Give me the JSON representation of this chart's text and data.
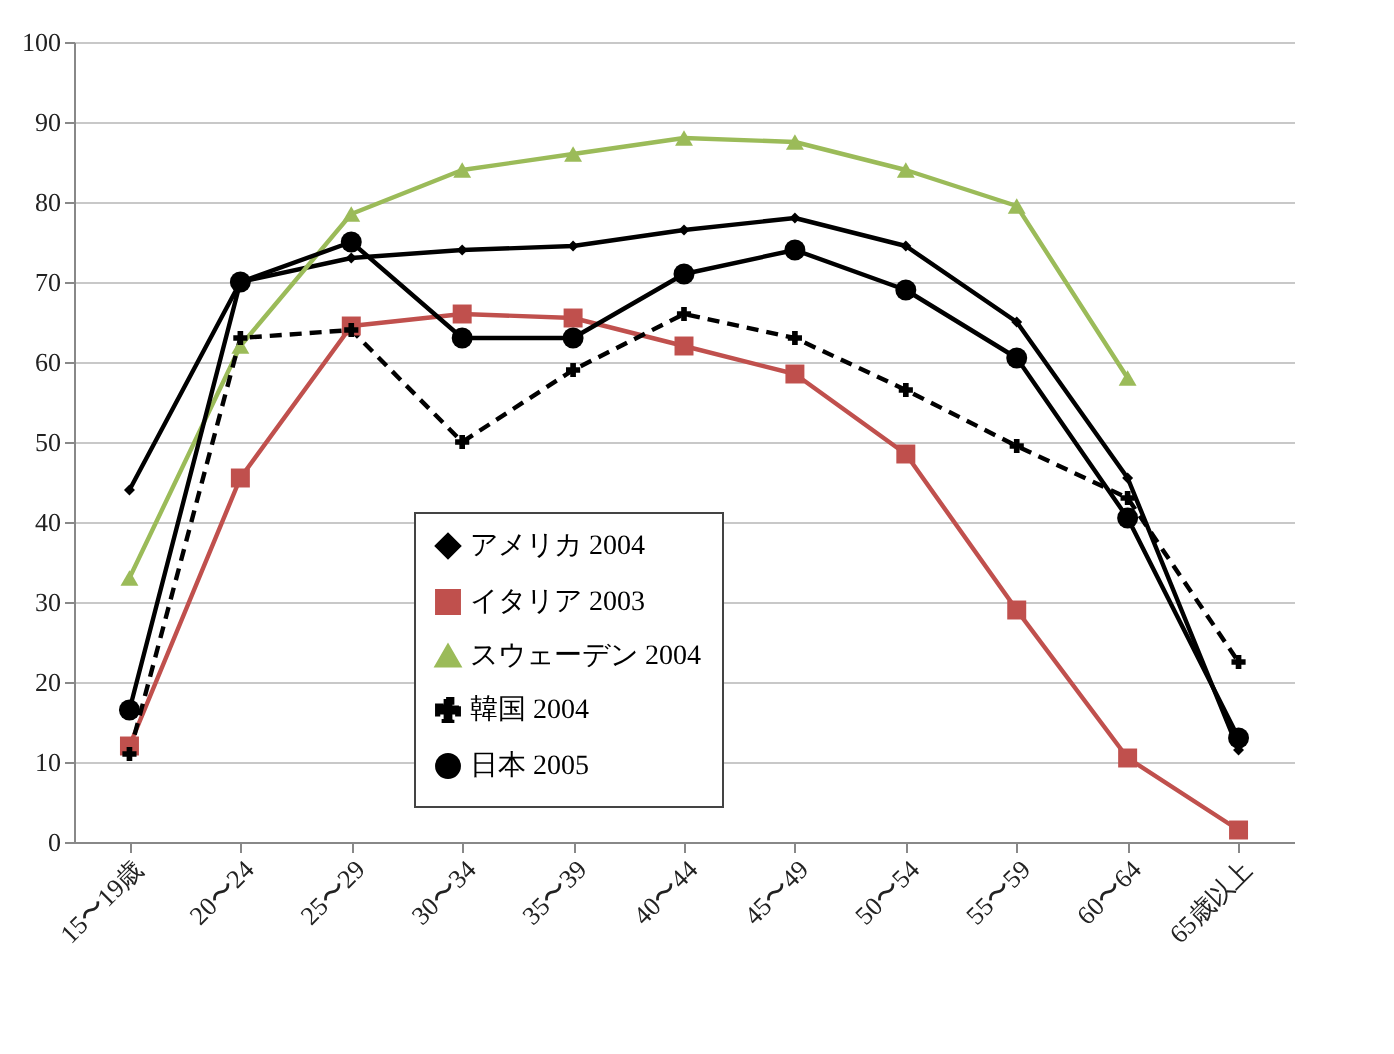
{
  "chart_data": {
    "type": "line",
    "categories": [
      "15〜19歳",
      "20〜24",
      "25〜29",
      "30〜34",
      "35〜39",
      "40〜44",
      "45〜49",
      "50〜54",
      "55〜59",
      "60〜64",
      "65歳以上"
    ],
    "series": [
      {
        "name": "アメリカ 2004",
        "color": "#000000",
        "marker": "diamond",
        "line_style": "solid",
        "values": [
          44,
          70,
          73,
          74,
          74.5,
          76.5,
          78,
          74.5,
          65,
          45.5,
          11.5
        ]
      },
      {
        "name": "イタリア 2003",
        "color": "#c0504d",
        "marker": "square",
        "line_style": "solid",
        "values": [
          12,
          45.5,
          64.5,
          66,
          65.5,
          62,
          58.5,
          48.5,
          29,
          10.5,
          1.5
        ]
      },
      {
        "name": "スウェーデン 2004",
        "color": "#9bbb59",
        "marker": "triangle",
        "line_style": "solid",
        "values": [
          33,
          62,
          78.5,
          84,
          86,
          88,
          87.5,
          84,
          79.5,
          58,
          null
        ]
      },
      {
        "name": "韓国 2004",
        "color": "#000000",
        "marker": "cross",
        "line_style": "dashed",
        "values": [
          11,
          63,
          64,
          50,
          59,
          66,
          63,
          56.5,
          49.5,
          43,
          22.5
        ]
      },
      {
        "name": "日本 2005",
        "color": "#000000",
        "marker": "circle",
        "line_style": "solid",
        "values": [
          16.5,
          70,
          75,
          63,
          63,
          71,
          74,
          69,
          60.5,
          40.5,
          13
        ]
      }
    ],
    "ylim": [
      0,
      100
    ],
    "yticks": [
      0,
      10,
      20,
      30,
      40,
      50,
      60,
      70,
      80,
      90,
      100
    ],
    "grid": "y",
    "legend": "bottom"
  }
}
